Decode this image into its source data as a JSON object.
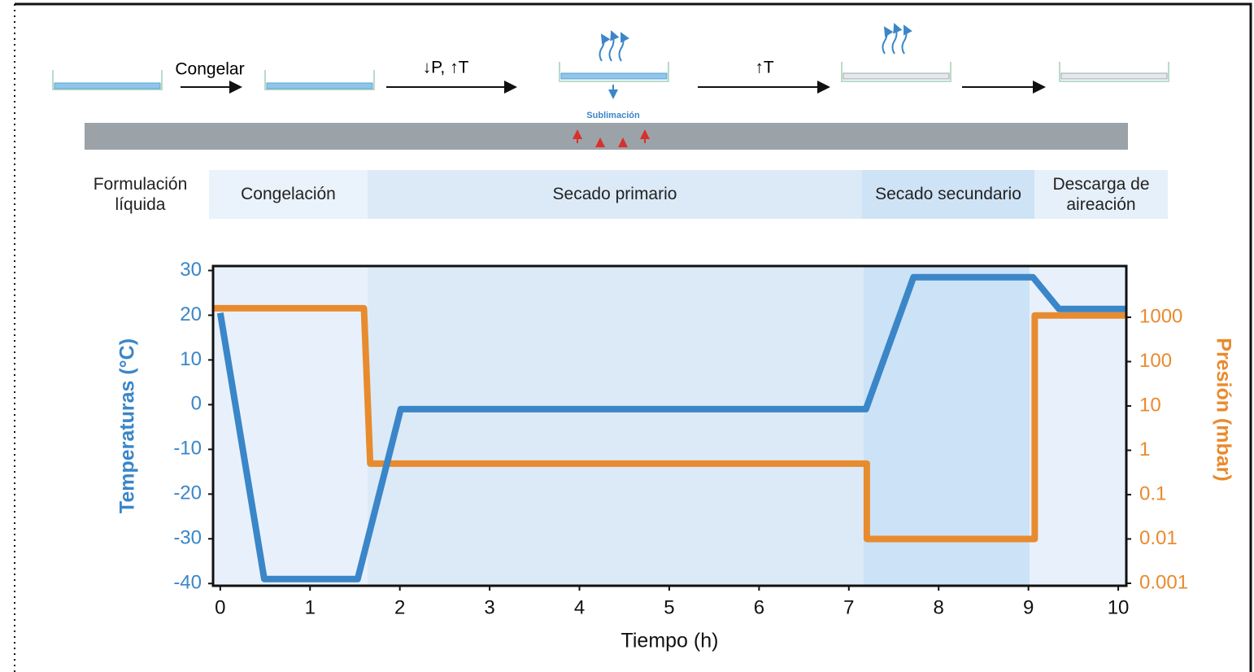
{
  "diagram": {
    "steps": [
      "Congelar",
      "↓P, ↑T",
      "↑T"
    ],
    "sublimation": "Sublimación",
    "phases": [
      "Formulación líquida",
      "Congelación",
      "Secado primario",
      "Secado secundario",
      "Descarga de aireación"
    ]
  },
  "chart_data": {
    "type": "line",
    "x_label": "Tiempo (h)",
    "y_label": "Temperaturas (°C)",
    "y2_label": "Presión (mbar)",
    "xlim": [
      -0.08,
      10.09
    ],
    "xticks": [
      0,
      1,
      2,
      3,
      4,
      5,
      6,
      7,
      8,
      9,
      10
    ],
    "ylim": [
      -40.5,
      31
    ],
    "yticks": [
      30,
      20,
      10,
      0,
      -10,
      -20,
      -30,
      -40
    ],
    "y2lim": [
      0.00088,
      14300
    ],
    "y2ticks": [
      1000,
      100,
      10,
      1,
      0.1,
      0.01,
      0.001
    ],
    "y2_log": true,
    "series": [
      {
        "name": "Temperaturas (°C)",
        "color": "#3a86c8",
        "x": [
          0,
          0.49,
          1.53,
          2.01,
          7.19,
          7.72,
          9.05,
          9.34,
          10.09
        ],
        "values": [
          20.5,
          -39,
          -39,
          -1,
          -1,
          28.5,
          28.5,
          21.4,
          21.4
        ]
      },
      {
        "name": "Presión (mbar)",
        "color": "#e88b2e",
        "axis": "y2",
        "x": [
          -0.08,
          1.6,
          1.67,
          7.2,
          7.2,
          9.07,
          9.07,
          10.09
        ],
        "values": [
          1600,
          1600,
          0.5,
          0.5,
          0.01,
          0.01,
          1100,
          1100
        ]
      }
    ]
  }
}
